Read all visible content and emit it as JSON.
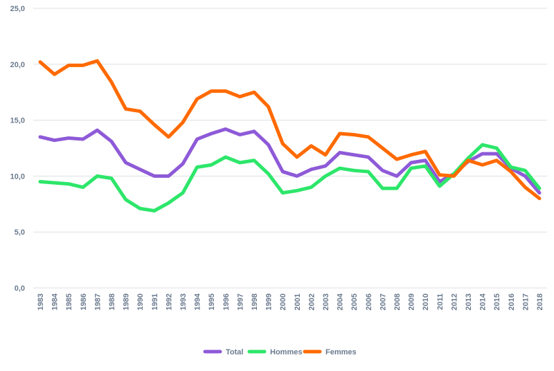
{
  "chart_data": {
    "type": "line",
    "title": "",
    "xlabel": "",
    "ylabel": "",
    "ylim": [
      0,
      25
    ],
    "y_ticks": [
      "0,0",
      "5,0",
      "10,0",
      "15,0",
      "20,0",
      "25,0"
    ],
    "y_tick_values": [
      0,
      5,
      10,
      15,
      20,
      25
    ],
    "grid": "horizontal",
    "legend_position": "bottom",
    "x": [
      "1983",
      "1984",
      "1985",
      "1986",
      "1987",
      "1988",
      "1989",
      "1990",
      "1991",
      "1992",
      "1993",
      "1994",
      "1995",
      "1996",
      "1997",
      "1998",
      "1999",
      "2000",
      "2001",
      "2002",
      "2003",
      "2004",
      "2005",
      "2006",
      "2007",
      "2008",
      "2009",
      "2010",
      "2011",
      "2012",
      "2013",
      "2014",
      "2015",
      "2016",
      "2017",
      "2018"
    ],
    "series": [
      {
        "name": "Total",
        "color": "#8e5ad8",
        "values": [
          13.5,
          13.2,
          13.4,
          13.3,
          14.1,
          13.1,
          11.2,
          10.6,
          10.0,
          10.0,
          11.1,
          13.3,
          13.8,
          14.2,
          13.7,
          14.0,
          12.8,
          10.4,
          10.0,
          10.6,
          10.9,
          12.1,
          11.9,
          11.7,
          10.5,
          10.0,
          11.2,
          11.4,
          9.5,
          10.2,
          11.3,
          12.0,
          12.0,
          10.7,
          10.0,
          8.5
        ]
      },
      {
        "name": "Hommes",
        "color": "#2de66a",
        "values": [
          9.5,
          9.4,
          9.3,
          9.0,
          10.0,
          9.8,
          7.9,
          7.1,
          6.9,
          7.6,
          8.5,
          10.8,
          11.0,
          11.7,
          11.2,
          11.4,
          10.2,
          8.5,
          8.7,
          9.0,
          10.0,
          10.7,
          10.5,
          10.4,
          8.9,
          8.9,
          10.7,
          10.9,
          9.1,
          10.2,
          11.6,
          12.8,
          12.5,
          10.8,
          10.5,
          8.9
        ]
      },
      {
        "name": "Femmes",
        "color": "#ff6a00",
        "values": [
          20.2,
          19.1,
          19.9,
          19.9,
          20.3,
          18.4,
          16.0,
          15.8,
          14.6,
          13.5,
          14.8,
          16.9,
          17.6,
          17.6,
          17.1,
          17.5,
          16.2,
          12.9,
          11.7,
          12.7,
          11.9,
          13.8,
          13.7,
          13.5,
          12.5,
          11.5,
          11.9,
          12.2,
          10.1,
          10.0,
          11.4,
          11.0,
          11.4,
          10.4,
          9.0,
          8.0
        ]
      }
    ]
  }
}
